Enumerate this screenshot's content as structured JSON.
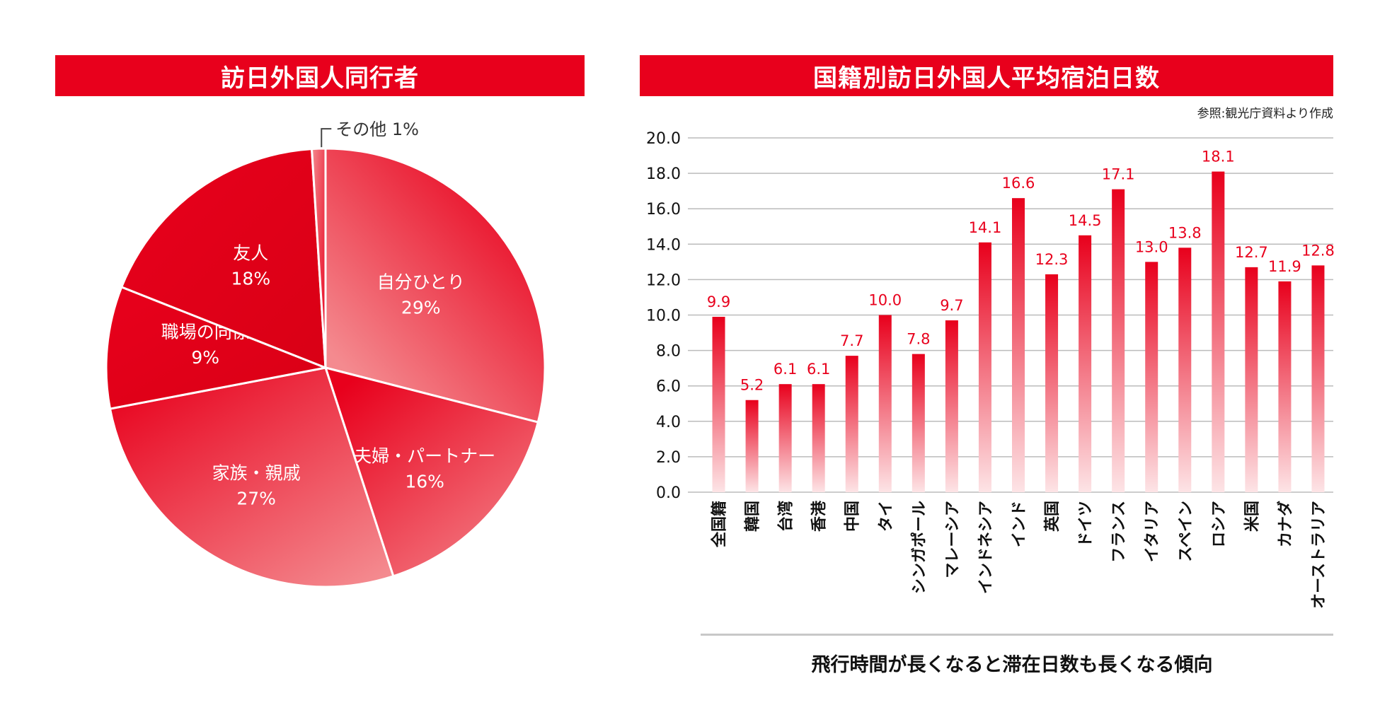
{
  "chart_data": [
    {
      "type": "pie",
      "title": "訪日外国人同行者",
      "slices": [
        {
          "label": "自分ひとり",
          "value": 29,
          "value_label": "29%"
        },
        {
          "label": "夫婦・パートナー",
          "value": 16,
          "value_label": "16%"
        },
        {
          "label": "家族・親戚",
          "value": 27,
          "value_label": "27%"
        },
        {
          "label": "職場の同僚",
          "value": 9,
          "value_label": "9%"
        },
        {
          "label": "友人",
          "value": 18,
          "value_label": "18%"
        },
        {
          "label": "その他",
          "value": 1,
          "value_label": "1%"
        }
      ],
      "colors": {
        "primary": "#e8001c",
        "light": "#f48a8f",
        "dark": "#d90015"
      }
    },
    {
      "type": "bar",
      "title": "国籍別訪日外国人平均宿泊日数",
      "source": "参照:観光庁資料より作成",
      "categories": [
        "全国籍",
        "韓国",
        "台湾",
        "香港",
        "中国",
        "タイ",
        "シンガポール",
        "マレーシア",
        "インドネシア",
        "インド",
        "英国",
        "ドイツ",
        "フランス",
        "イタリア",
        "スペイン",
        "ロシア",
        "米国",
        "カナダ",
        "オーストラリア"
      ],
      "values": [
        9.9,
        5.2,
        6.1,
        6.1,
        7.7,
        10.0,
        7.8,
        9.7,
        14.1,
        16.6,
        12.3,
        14.5,
        17.1,
        13.0,
        13.8,
        18.1,
        12.7,
        11.9,
        12.8
      ],
      "value_labels": [
        "9.9",
        "5.2",
        "6.1",
        "6.1",
        "7.7",
        "10.0",
        "7.8",
        "9.7",
        "14.1",
        "16.6",
        "12.3",
        "14.5",
        "17.1",
        "13.0",
        "13.8",
        "18.1",
        "12.7",
        "11.9",
        "12.8"
      ],
      "ylim": [
        0,
        20
      ],
      "yticks": [
        "0.0",
        "2.0",
        "4.0",
        "6.0",
        "8.0",
        "10.0",
        "12.0",
        "14.0",
        "16.0",
        "18.0",
        "20.0"
      ],
      "grid": true,
      "caption": "飛行時間が長くなると滞在日数も長くなる傾向",
      "colors": {
        "bar": "#e8001c",
        "label": "#e8001c",
        "grid": "#bbbbbb"
      }
    }
  ]
}
